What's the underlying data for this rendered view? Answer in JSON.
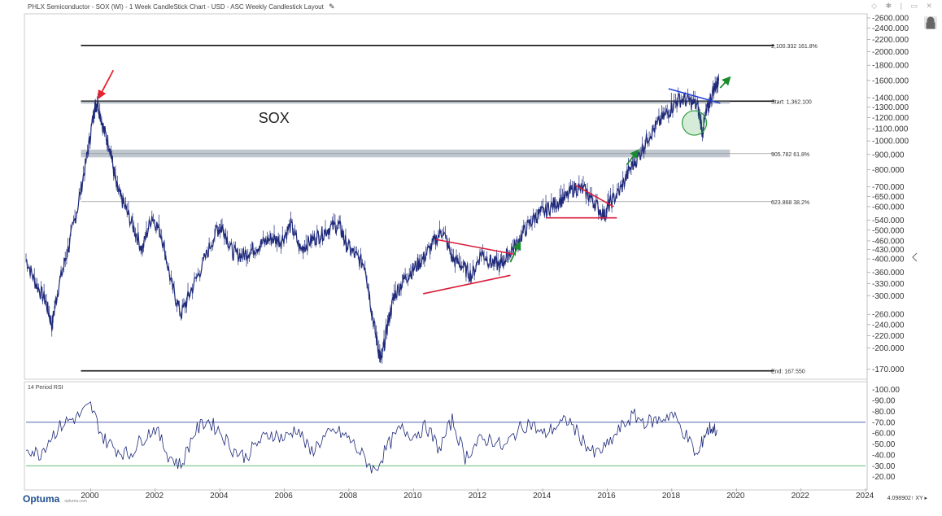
{
  "window": {
    "title": "PHLX Semiconductor - SOX (WI) - 1 Week CandleStick Chart - USD - ASC Weekly Candlestick Layout",
    "edit_icon": "pencil-icon",
    "topbar_icons": "◇ ✱ | ▭ ✕",
    "lock_icon": "lock-icon",
    "logo_text": "Optuma",
    "logo_sub": "optuma.com",
    "scale_readout": "4.098902↑ XY ▸"
  },
  "chart_data": [
    {
      "type": "line",
      "panel": "price",
      "title": "SOX",
      "y_scale": "log",
      "ylim": [
        160,
        2650
      ],
      "xlim": [
        1998.0,
        2024.0
      ],
      "x_ticks": [
        "2000",
        "2002",
        "2004",
        "2006",
        "2008",
        "2010",
        "2012",
        "2014",
        "2016",
        "2018",
        "2020",
        "2022",
        "2024"
      ],
      "y_ticks": [
        "170.000",
        "200.000",
        "220.000",
        "240.000",
        "260.000",
        "300.000",
        "330.000",
        "360.000",
        "400.000",
        "430.000",
        "460.000",
        "500.000",
        "540.000",
        "600.000",
        "650.000",
        "700.000",
        "800.000",
        "900.000",
        "1000.000",
        "1100.000",
        "1200.000",
        "1300.000",
        "1400.000",
        "1600.000",
        "1800.000",
        "2000.000",
        "2200.000",
        "2400.000",
        "2600.000"
      ],
      "series": [
        {
          "x": [
            1998.0,
            1998.3,
            1998.6,
            1998.8,
            1999.0,
            1999.3,
            1999.6,
            1999.9,
            2000.1,
            2000.2,
            2000.4,
            2000.6,
            2000.8,
            2001.0,
            2001.3,
            2001.6,
            2001.9,
            2002.2,
            2002.5,
            2002.8,
            2003.1,
            2003.5,
            2003.9,
            2004.1,
            2004.4,
            2004.7,
            2005.0,
            2005.3,
            2005.6,
            2005.9,
            2006.2,
            2006.5,
            2006.8,
            2007.1,
            2007.4,
            2007.7,
            2007.9,
            2008.2,
            2008.5,
            2008.7,
            2008.9,
            2009.0,
            2009.2,
            2009.4,
            2009.7,
            2010.0,
            2010.3,
            2010.6,
            2010.9,
            2011.2,
            2011.5,
            2011.8,
            2012.1,
            2012.4,
            2012.7,
            2012.9,
            2013.2,
            2013.5,
            2013.8,
            2014.1,
            2014.4,
            2014.7,
            2015.0,
            2015.3,
            2015.6,
            2015.9,
            2016.1,
            2016.4,
            2016.7,
            2017.0,
            2017.3,
            2017.6,
            2017.9,
            2018.2,
            2018.5,
            2018.8,
            2018.95,
            2019.1,
            2019.3,
            2019.45
          ],
          "y": [
            400,
            330,
            290,
            240,
            320,
            430,
            600,
            900,
            1250,
            1360,
            1100,
            950,
            700,
            620,
            520,
            430,
            560,
            480,
            330,
            260,
            310,
            390,
            500,
            510,
            420,
            410,
            430,
            450,
            470,
            460,
            520,
            430,
            460,
            480,
            510,
            520,
            450,
            410,
            380,
            270,
            200,
            180,
            240,
            300,
            340,
            370,
            400,
            450,
            500,
            400,
            380,
            350,
            420,
            390,
            380,
            410,
            450,
            510,
            560,
            580,
            620,
            640,
            700,
            680,
            620,
            560,
            620,
            680,
            800,
            900,
            1050,
            1150,
            1260,
            1380,
            1370,
            1310,
            1080,
            1280,
            1500,
            1600
          ]
        }
      ],
      "horizontal_levels": [
        {
          "value": 2100.332,
          "label": "2,100.332",
          "pct": "161.8%"
        },
        {
          "value": 1362.1,
          "label": "Start:",
          "value_label": "1,362.100"
        },
        {
          "value": 905.782,
          "label": "905.782",
          "pct": "61.8%"
        },
        {
          "value": 623.868,
          "label": "623.868",
          "pct": "38.2%"
        },
        {
          "value": 167.55,
          "label": "End:",
          "value_label": "167.550"
        }
      ],
      "annotations": {
        "red_arrow_color": "#e8232a",
        "green_arrow_color": "#1a8c2e",
        "triangle_color": "#d81e3c",
        "downtrend_color": "#2140d8",
        "support_band_color": "#8d99a6",
        "circle_color": "#2e9e3f"
      },
      "price_color": "#1f2a7a"
    },
    {
      "type": "line",
      "panel": "rsi",
      "title": "14 Period RSI",
      "ylim": [
        10,
        105
      ],
      "y_ticks": [
        "100.00",
        "90.00",
        "80.00",
        "70.00",
        "60.00",
        "50.00",
        "40.00",
        "30.00",
        "20.00"
      ],
      "overbought": 70,
      "oversold": 30,
      "overbought_color": "#3b4fa0",
      "oversold_color": "#39a34a",
      "series": [
        {
          "x": [
            1998.0,
            1998.4,
            1998.8,
            1999.2,
            1999.6,
            2000.0,
            2000.4,
            2000.8,
            2001.2,
            2001.6,
            2002.0,
            2002.4,
            2002.8,
            2003.2,
            2003.6,
            2004.0,
            2004.4,
            2004.8,
            2005.2,
            2005.6,
            2006.0,
            2006.4,
            2006.8,
            2007.2,
            2007.6,
            2008.0,
            2008.4,
            2008.8,
            2009.2,
            2009.6,
            2010.0,
            2010.4,
            2010.8,
            2011.2,
            2011.6,
            2012.0,
            2012.4,
            2012.8,
            2013.2,
            2013.6,
            2014.0,
            2014.4,
            2014.8,
            2015.2,
            2015.6,
            2016.0,
            2016.4,
            2016.8,
            2017.2,
            2017.6,
            2018.0,
            2018.4,
            2018.8,
            2019.0,
            2019.2,
            2019.4
          ],
          "y": [
            48,
            40,
            58,
            70,
            75,
            85,
            55,
            45,
            40,
            55,
            65,
            40,
            30,
            60,
            72,
            62,
            45,
            38,
            52,
            60,
            55,
            65,
            42,
            55,
            62,
            55,
            40,
            25,
            48,
            64,
            58,
            66,
            45,
            72,
            38,
            52,
            55,
            46,
            62,
            70,
            58,
            66,
            72,
            55,
            40,
            48,
            64,
            76,
            70,
            72,
            78,
            60,
            38,
            58,
            65,
            63
          ]
        }
      ]
    }
  ]
}
